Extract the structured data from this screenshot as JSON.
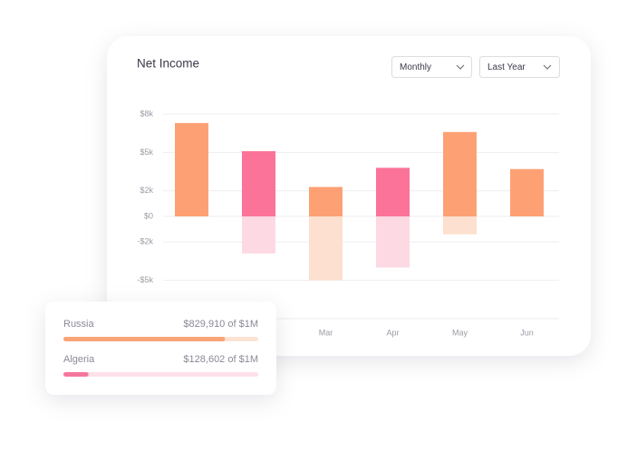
{
  "chart_data": {
    "type": "bar",
    "title": "Net Income",
    "categories": [
      null,
      null,
      "Mar",
      "Apr",
      "May",
      "Jun"
    ],
    "series": [
      {
        "colors": [
          "#fda174",
          "#fb7398",
          "#fda174",
          "#fb7398",
          "#fda174",
          "#fda174"
        ],
        "values": [
          7300,
          5100,
          2300,
          3800,
          6600,
          3700
        ]
      },
      {
        "colors": [
          "#fde0cf",
          "#fdd9e3",
          "#fde0cf",
          "#fdd9e3",
          "#fde0cf",
          "#fde0cf"
        ],
        "values": [
          null,
          -2900,
          -5000,
          -4000,
          -1400,
          null
        ]
      }
    ],
    "ylim": [
      -8000,
      8000
    ],
    "yticks": [
      {
        "value": 8000,
        "label": "$8k"
      },
      {
        "value": 5000,
        "label": "$5k"
      },
      {
        "value": 2000,
        "label": "$2k"
      },
      {
        "value": 0,
        "label": "$0"
      },
      {
        "value": -2000,
        "label": "-$2k"
      },
      {
        "value": -5000,
        "label": "-$5k"
      }
    ],
    "grid": true
  },
  "controls": {
    "period": "Monthly",
    "range": "Last Year"
  },
  "progress_card": {
    "items": [
      {
        "name": "Russia",
        "label": "$829,910 of $1M",
        "value": 829910,
        "max": 1000000,
        "color": "#f9a577",
        "track_color": "#fde3d3"
      },
      {
        "name": "Algeria",
        "label": "$128,602 of $1M",
        "value": 128602,
        "max": 1000000,
        "color": "#f6779d",
        "track_color": "#fde0ea"
      }
    ]
  }
}
